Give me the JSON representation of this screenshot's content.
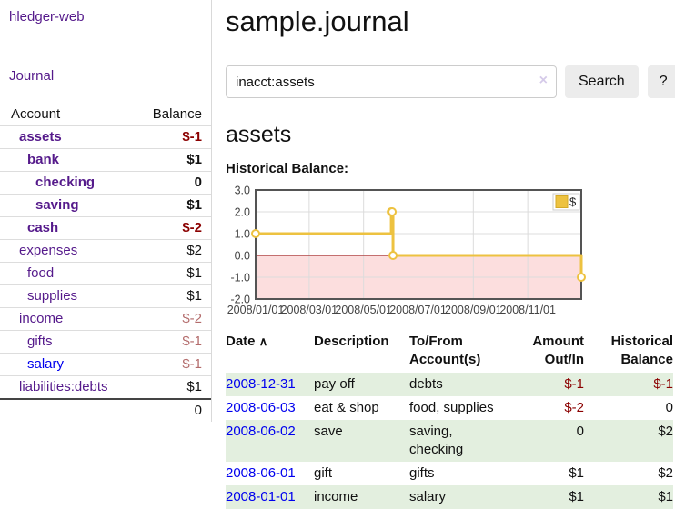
{
  "sidebar": {
    "app_title": "hledger-web",
    "nav_journal": "Journal",
    "accounts": {
      "header_account": "Account",
      "header_balance": "Balance",
      "rows": [
        {
          "name": "assets",
          "balance": "$-1",
          "level": 1,
          "bold": true
        },
        {
          "name": "bank",
          "balance": "$1",
          "level": 2,
          "bold": true
        },
        {
          "name": "checking",
          "balance": "0",
          "level": 3,
          "bold": true
        },
        {
          "name": "saving",
          "balance": "$1",
          "level": 3,
          "bold": true
        },
        {
          "name": "cash",
          "balance": "$-2",
          "level": 2,
          "bold": true
        },
        {
          "name": "expenses",
          "balance": "$2",
          "level": 1,
          "bold": false
        },
        {
          "name": "food",
          "balance": "$1",
          "level": 2,
          "bold": false
        },
        {
          "name": "supplies",
          "balance": "$1",
          "level": 2,
          "bold": false
        },
        {
          "name": "income",
          "balance": "$-2",
          "level": 1,
          "bold": false
        },
        {
          "name": "gifts",
          "balance": "$-1",
          "level": 2,
          "bold": false
        },
        {
          "name": "salary",
          "balance": "$-1",
          "level": 2,
          "bold": false,
          "unvisited": true
        },
        {
          "name": "liabilities:debts",
          "balance": "$1",
          "level": 1,
          "bold": false
        }
      ],
      "total": "0"
    }
  },
  "header": {
    "title": "sample.journal"
  },
  "search": {
    "query": "inacct:assets",
    "clear_icon": "×",
    "button_label": "Search",
    "help_label": "?"
  },
  "account_page": {
    "heading": "assets",
    "chart_label": "Historical Balance:"
  },
  "chart_data": {
    "type": "line",
    "step": true,
    "title": "Historical Balance",
    "series": [
      {
        "name": "$",
        "color": "#edc240",
        "points": [
          [
            "2008-01-01",
            1
          ],
          [
            "2008-06-01",
            2
          ],
          [
            "2008-06-02",
            2
          ],
          [
            "2008-06-03",
            0
          ],
          [
            "2008-12-31",
            -1
          ]
        ]
      }
    ],
    "x_range": [
      "2008-01-01",
      "2008-12-31"
    ],
    "ylim": [
      -2,
      3
    ],
    "yticks": [
      3,
      2,
      1,
      0,
      -1,
      -2
    ],
    "xticks": [
      "2008/01/01",
      "2008/03/01",
      "2008/05/01",
      "2008/07/01",
      "2008/09/01",
      "2008/11/01"
    ],
    "grid": true,
    "legend_position": "top-right",
    "legend_label": "$",
    "negative_fill": "#fcdede",
    "zero_line_color": "#8b0000",
    "border_color": "#545454",
    "grid_color": "#dcdcdc"
  },
  "register": {
    "headers": {
      "date": "Date",
      "sort_icon": "∧",
      "description": "Description",
      "accounts": "To/From Account(s)",
      "amount": "Amount Out/In",
      "balance": "Historical Balance"
    },
    "rows": [
      {
        "date": "2008-12-31",
        "description": "pay off",
        "accounts": "debts",
        "amount": "$-1",
        "balance": "$-1"
      },
      {
        "date": "2008-06-03",
        "description": "eat & shop",
        "accounts": "food, supplies",
        "amount": "$-2",
        "balance": "0"
      },
      {
        "date": "2008-06-02",
        "description": "save",
        "accounts": "saving,\nchecking",
        "amount": "0",
        "balance": "$2"
      },
      {
        "date": "2008-06-01",
        "description": "gift",
        "accounts": "gifts",
        "amount": "$1",
        "balance": "$2"
      },
      {
        "date": "2008-01-01",
        "description": "income",
        "accounts": "salary",
        "amount": "$1",
        "balance": "$1"
      }
    ]
  }
}
